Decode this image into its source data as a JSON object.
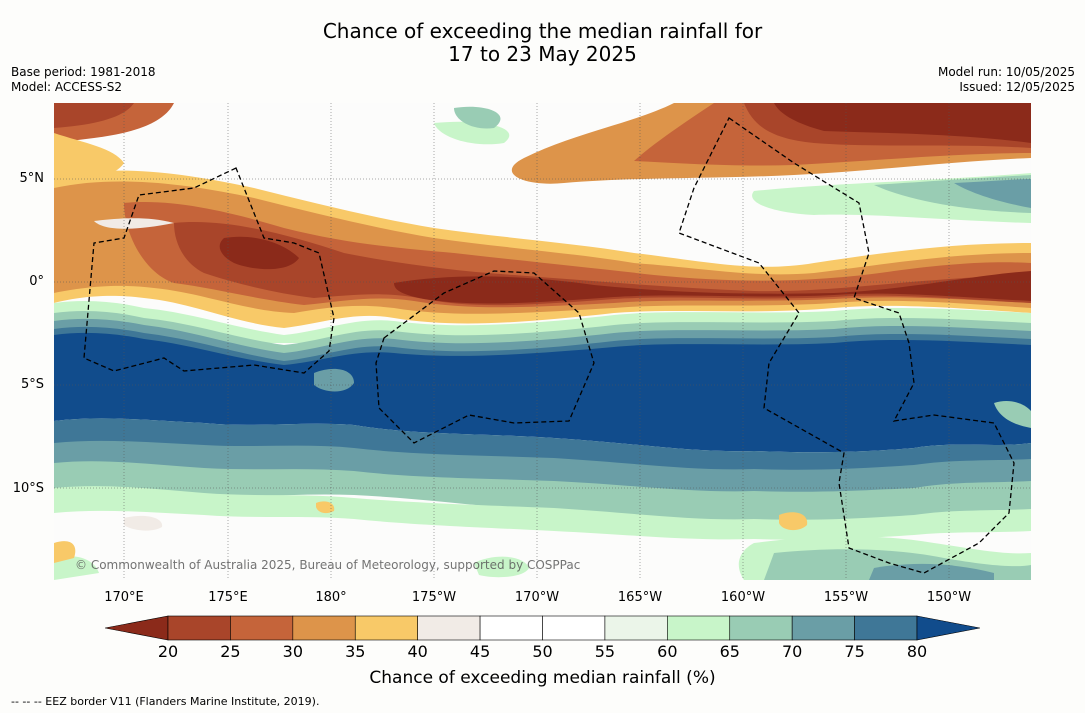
{
  "title_line1": "Chance of exceeding the median rainfall for",
  "title_line2": "17 to 23 May 2025",
  "base_period": "Base period: 1981-2018",
  "model": "Model: ACCESS-S2",
  "model_run": "Model run: 10/05/2025",
  "issued": "Issued: 12/05/2025",
  "map": {
    "lat_labels": [
      "5°N",
      "0°",
      "5°S",
      "10°S"
    ],
    "lon_labels": [
      "170°E",
      "175°E",
      "180°",
      "175°W",
      "170°W",
      "165°W",
      "160°W",
      "155°W",
      "150°W"
    ],
    "copyright": "© Commonwealth of Australia 2025, Bureau of Meteorology, supported by COSPPac"
  },
  "colorbar": {
    "ticks": [
      "20",
      "25",
      "30",
      "35",
      "40",
      "45",
      "50",
      "55",
      "60",
      "65",
      "70",
      "75",
      "80"
    ],
    "colors": [
      "#8b2a1a",
      "#a9452a",
      "#c5643a",
      "#dd944a",
      "#f8c968",
      "#f1ebe6",
      "#ffffff",
      "#ffffff",
      "#ebf5e9",
      "#c8f5c9",
      "#99ccb4",
      "#6a9ea6",
      "#3f7797",
      "#114c8c"
    ],
    "label": "Chance of exceeding median rainfall (%)"
  },
  "footnote": "--  --  -- EEZ border V11 (Flanders Marine Institute, 2019)."
}
